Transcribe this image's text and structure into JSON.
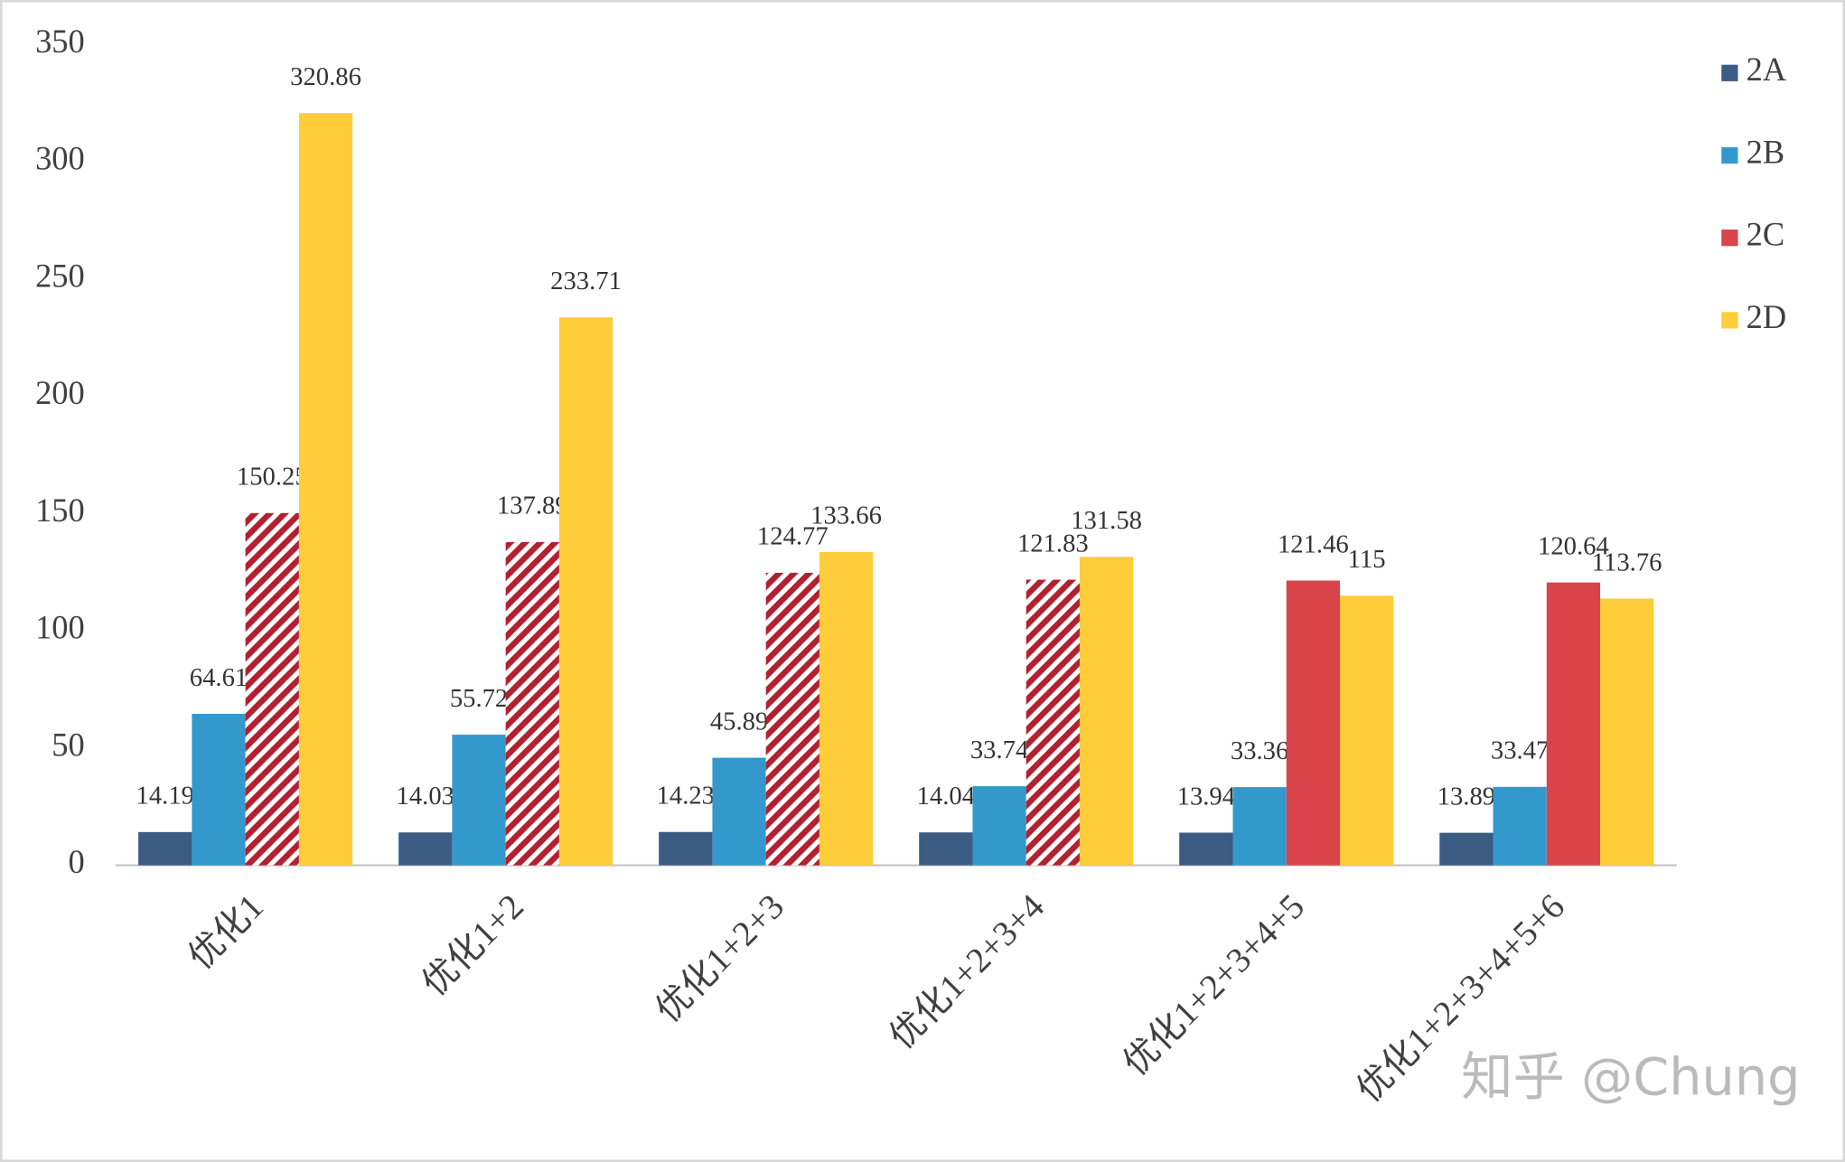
{
  "chart_data": {
    "type": "bar",
    "categories": [
      "优化1",
      "优化1+2",
      "优化1+2+3",
      "优化1+2+3+4",
      "优化1+2+3+4+5",
      "优化1+2+3+4+5+6"
    ],
    "series": [
      {
        "name": "2A",
        "color": "#3b5b82",
        "values": [
          14.19,
          14.03,
          14.23,
          14.04,
          13.94,
          13.89
        ]
      },
      {
        "name": "2B",
        "color": "#3399cc",
        "values": [
          64.61,
          55.72,
          45.89,
          33.74,
          33.36,
          33.47
        ]
      },
      {
        "name": "2C",
        "color": "#d9444b",
        "hatch_color": "#b3202f",
        "hatched": [
          true,
          true,
          true,
          true,
          false,
          false
        ],
        "values": [
          150.25,
          137.89,
          124.77,
          121.83,
          121.46,
          120.64
        ]
      },
      {
        "name": "2D",
        "color": "#ffcc3a",
        "values": [
          320.86,
          233.71,
          133.66,
          131.58,
          115,
          113.76
        ]
      }
    ],
    "ylim": [
      0,
      350
    ],
    "yticks": [
      0,
      50,
      100,
      150,
      200,
      250,
      300,
      350
    ],
    "grid": false,
    "legend": "top-right",
    "watermark": "知乎 @Chung"
  }
}
